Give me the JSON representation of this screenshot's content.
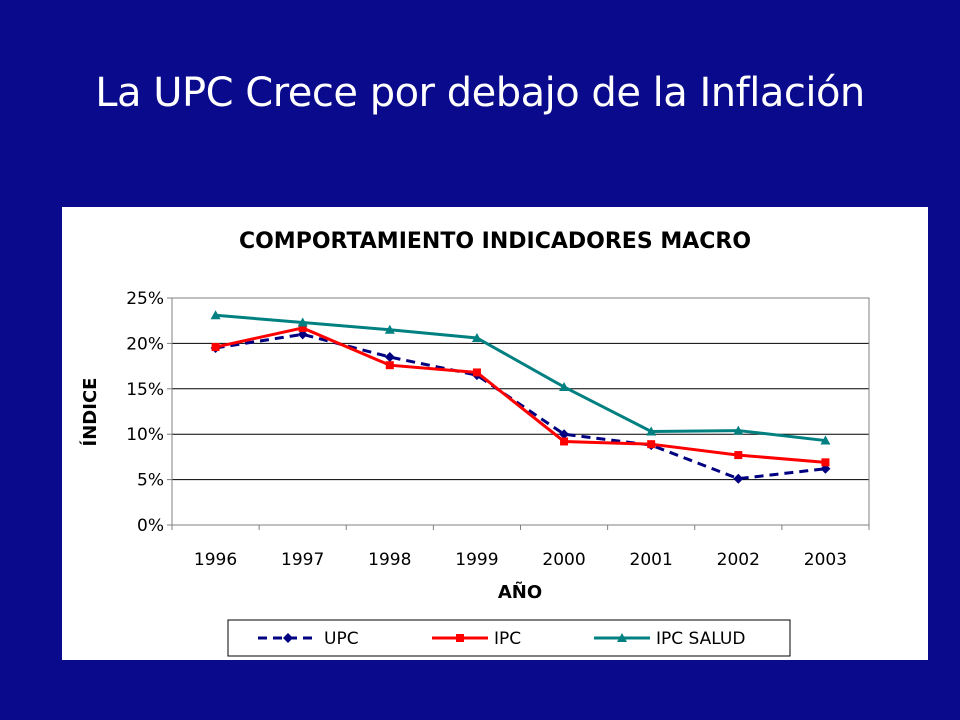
{
  "slide": {
    "title": "La UPC Crece por debajo de la Inflación"
  },
  "chart_data": {
    "type": "line",
    "title": "COMPORTAMIENTO INDICADORES MACRO",
    "xlabel": "AÑO",
    "ylabel": "ÍNDICE",
    "categories": [
      "1996",
      "1997",
      "1998",
      "1999",
      "2000",
      "2001",
      "2002",
      "2003"
    ],
    "ylim": [
      0,
      25
    ],
    "yticks": [
      0,
      5,
      10,
      15,
      20,
      25
    ],
    "ytick_labels": [
      "0%",
      "5%",
      "10%",
      "15%",
      "20%",
      "25%"
    ],
    "grid": true,
    "legend_position": "bottom",
    "series": [
      {
        "name": "UPC",
        "values": [
          19.5,
          21.0,
          18.5,
          16.5,
          10.0,
          8.8,
          5.1,
          6.2
        ],
        "color": "#000080",
        "line_style": "dashed",
        "marker": "diamond"
      },
      {
        "name": "IPC",
        "values": [
          19.6,
          21.7,
          17.6,
          16.8,
          9.2,
          8.9,
          7.7,
          6.9
        ],
        "color": "#ff0000",
        "line_style": "solid",
        "marker": "square"
      },
      {
        "name": "IPC SALUD",
        "values": [
          23.1,
          22.3,
          21.5,
          20.6,
          15.2,
          10.3,
          10.4,
          9.3
        ],
        "color": "#008080",
        "line_style": "solid",
        "marker": "triangle"
      }
    ]
  }
}
